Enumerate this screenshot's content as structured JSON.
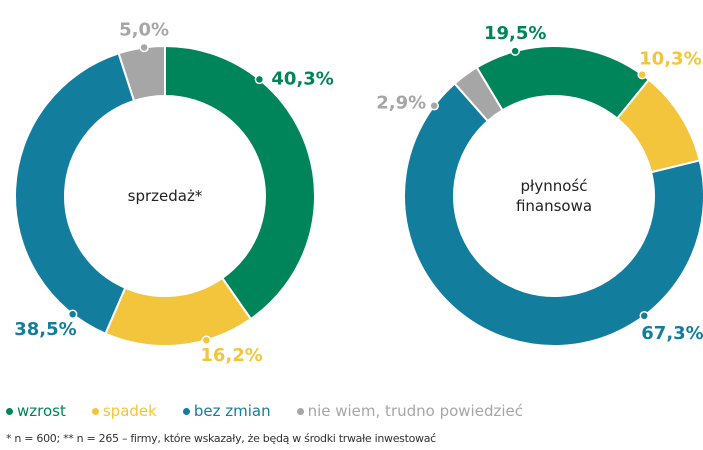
{
  "chart_data": [
    {
      "type": "donut",
      "title": "sprzedaż*",
      "categories": [
        "wzrost",
        "spadek",
        "bez zmian",
        "nie wiem, trudno powiedzieć"
      ],
      "values": [
        40.3,
        16.2,
        38.5,
        5.0
      ],
      "value_labels": [
        "40,3%",
        "16,2%",
        "38,5%",
        "5,0%"
      ],
      "colors": [
        "#00845a",
        "#f2c53d",
        "#137d9e",
        "#a6a6a6"
      ]
    },
    {
      "type": "donut",
      "title": "płynność finansowa",
      "categories": [
        "wzrost",
        "spadek",
        "bez zmian",
        "nie wiem, trudno powiedzieć"
      ],
      "values": [
        19.5,
        10.3,
        67.3,
        2.9
      ],
      "value_labels": [
        "19,5%",
        "10,3%",
        "67,3%",
        "2,9%"
      ],
      "colors": [
        "#00845a",
        "#f2c53d",
        "#137d9e",
        "#a6a6a6"
      ]
    }
  ],
  "footnote": "* n = 600; ** n = 265 – firmy, które wskazały, że będą  w środki trwałe inwestować"
}
